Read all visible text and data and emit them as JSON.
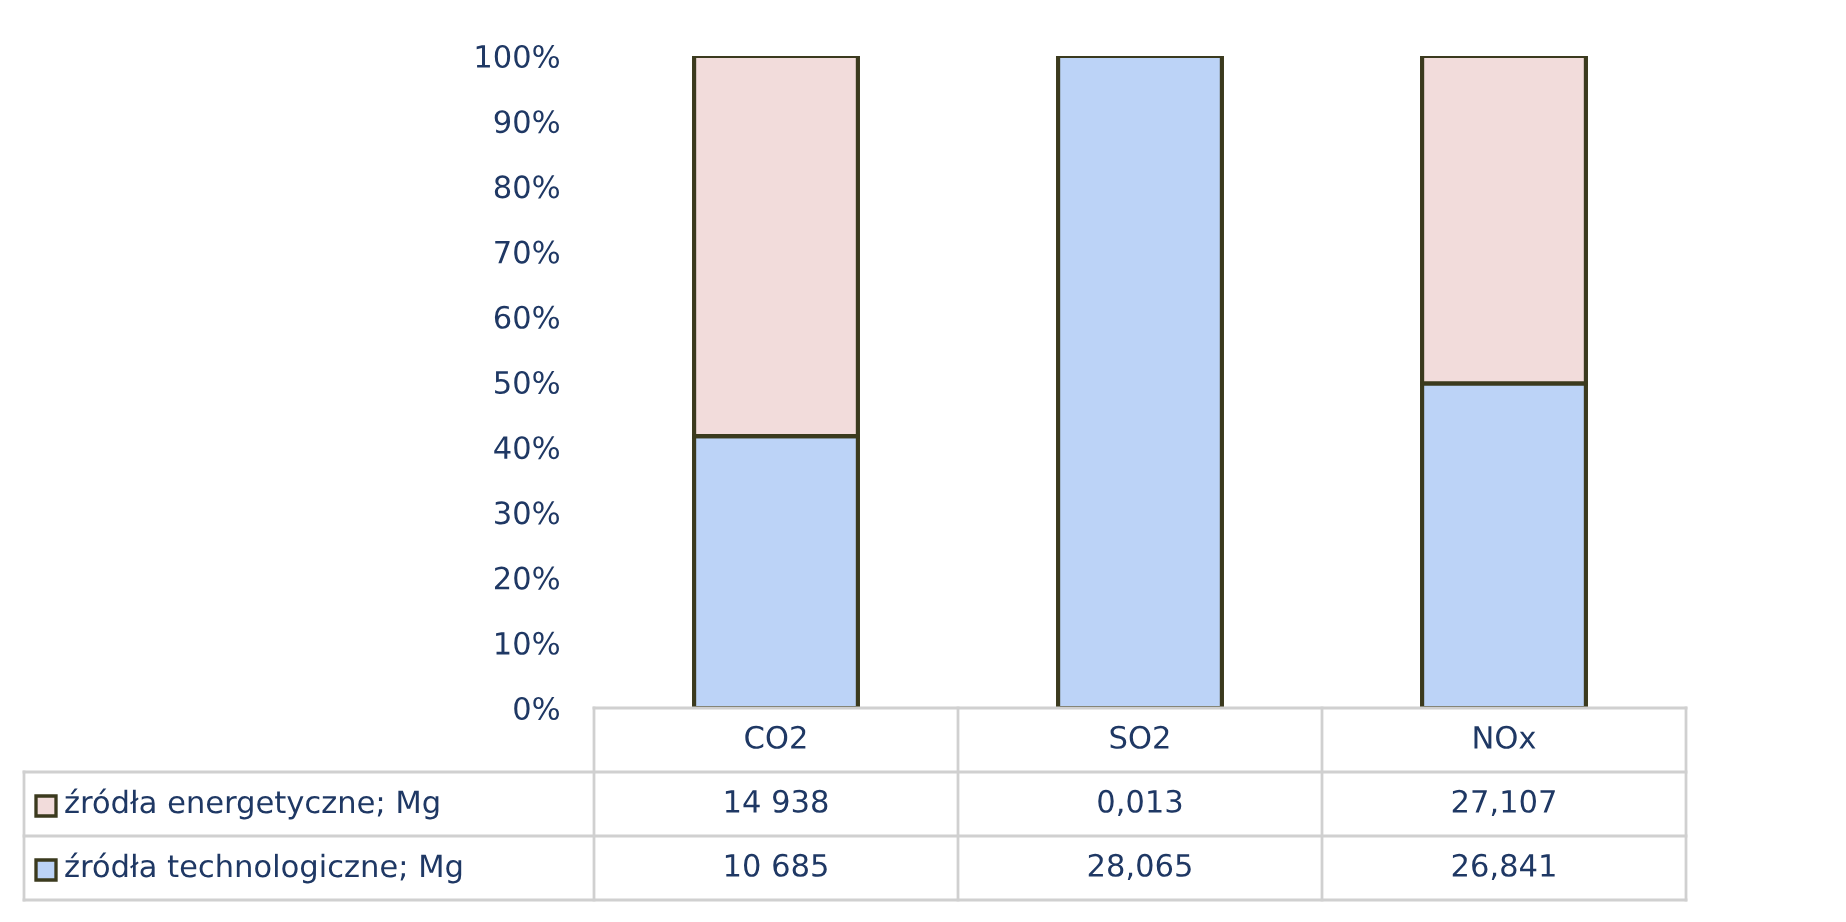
{
  "chart_data": {
    "type": "bar",
    "stacked": true,
    "categories": [
      "CO2",
      "SO2",
      "NOx"
    ],
    "series": [
      {
        "name": "źródła technologiczne; Mg",
        "color": "#bcd3f7",
        "values": [
          41.7,
          100,
          49.8
        ]
      },
      {
        "name": "źródła energetyczne; Mg",
        "color": "#f2dcdb",
        "values": [
          58.3,
          null,
          50.2
        ]
      }
    ],
    "annotations": [
      "14 938",
      "0,013",
      "27,107",
      "10 685",
      "28,065",
      "26,841"
    ],
    "ylim": [
      0,
      100
    ],
    "yticks": [
      {
        "value": 0,
        "label": "0%"
      },
      {
        "value": 10,
        "label": "10%"
      },
      {
        "value": 20,
        "label": "20%"
      },
      {
        "value": 30,
        "label": "30%"
      },
      {
        "value": 40,
        "label": "40%"
      },
      {
        "value": 50,
        "label": "50%"
      },
      {
        "value": 60,
        "label": "60%"
      },
      {
        "value": 70,
        "label": "70%"
      },
      {
        "value": 80,
        "label": "80%"
      },
      {
        "value": 90,
        "label": "90%"
      },
      {
        "value": 100,
        "label": "100%"
      }
    ],
    "legend": "bottom",
    "grid": false
  }
}
